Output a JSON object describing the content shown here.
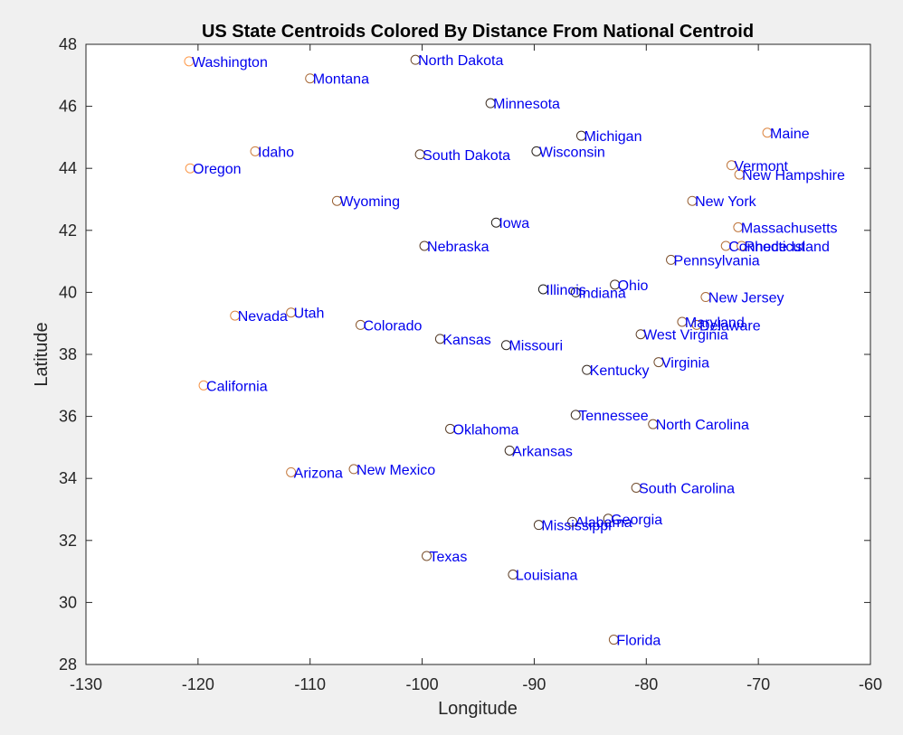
{
  "chart_data": {
    "type": "scatter",
    "title": "US State Centroids Colored By Distance From National Centroid",
    "xlabel": "Longitude",
    "ylabel": "Latitude",
    "xlim": [
      -130,
      -60
    ],
    "ylim": [
      28,
      48
    ],
    "xticks": [
      -130,
      -120,
      -110,
      -100,
      -90,
      -80,
      -70,
      -60
    ],
    "yticks": [
      28,
      30,
      32,
      34,
      36,
      38,
      40,
      42,
      44,
      46,
      48
    ],
    "grid": false,
    "marker": "open-circle",
    "label_color": "#0000ee",
    "color_near": "#1a1a1a",
    "color_far": "#ff9a4a",
    "points": [
      {
        "name": "Washington",
        "x": -120.8,
        "y": 47.45,
        "d": 1.0
      },
      {
        "name": "Montana",
        "x": -110.0,
        "y": 46.9,
        "d": 0.62
      },
      {
        "name": "North Dakota",
        "x": -100.6,
        "y": 47.5,
        "d": 0.35
      },
      {
        "name": "Minnesota",
        "x": -93.9,
        "y": 46.1,
        "d": 0.15
      },
      {
        "name": "Michigan",
        "x": -85.8,
        "y": 45.05,
        "d": 0.18
      },
      {
        "name": "Maine",
        "x": -69.2,
        "y": 45.15,
        "d": 0.85
      },
      {
        "name": "Idaho",
        "x": -114.9,
        "y": 44.55,
        "d": 0.78
      },
      {
        "name": "South Dakota",
        "x": -100.2,
        "y": 44.45,
        "d": 0.3
      },
      {
        "name": "Wisconsin",
        "x": -89.8,
        "y": 44.55,
        "d": 0.06
      },
      {
        "name": "Vermont",
        "x": -72.4,
        "y": 44.1,
        "d": 0.72
      },
      {
        "name": "Oregon",
        "x": -120.7,
        "y": 44.0,
        "d": 0.98
      },
      {
        "name": "New Hampshire",
        "x": -71.7,
        "y": 43.8,
        "d": 0.74
      },
      {
        "name": "Wyoming",
        "x": -107.6,
        "y": 42.95,
        "d": 0.55
      },
      {
        "name": "New York",
        "x": -75.9,
        "y": 42.95,
        "d": 0.55
      },
      {
        "name": "Iowa",
        "x": -93.4,
        "y": 42.25,
        "d": 0.05
      },
      {
        "name": "Massachusetts",
        "x": -71.8,
        "y": 42.1,
        "d": 0.72
      },
      {
        "name": "Nebraska",
        "x": -99.8,
        "y": 41.5,
        "d": 0.28
      },
      {
        "name": "Connecticut",
        "x": -72.9,
        "y": 41.5,
        "d": 0.68
      },
      {
        "name": "Rhode Island",
        "x": -71.5,
        "y": 41.5,
        "d": 0.74
      },
      {
        "name": "Pennsylvania",
        "x": -77.8,
        "y": 41.05,
        "d": 0.45
      },
      {
        "name": "Ohio",
        "x": -82.8,
        "y": 40.25,
        "d": 0.2
      },
      {
        "name": "Illinois",
        "x": -89.2,
        "y": 40.1,
        "d": 0.0
      },
      {
        "name": "Indiana",
        "x": -86.3,
        "y": 40.0,
        "d": 0.08
      },
      {
        "name": "New Jersey",
        "x": -74.7,
        "y": 39.85,
        "d": 0.62
      },
      {
        "name": "Utah",
        "x": -111.7,
        "y": 39.35,
        "d": 0.68
      },
      {
        "name": "Nevada",
        "x": -116.7,
        "y": 39.25,
        "d": 0.85
      },
      {
        "name": "Maryland",
        "x": -76.8,
        "y": 39.05,
        "d": 0.5
      },
      {
        "name": "Delaware",
        "x": -75.5,
        "y": 38.95,
        "d": 0.58
      },
      {
        "name": "Colorado",
        "x": -105.5,
        "y": 38.95,
        "d": 0.5
      },
      {
        "name": "West Virginia",
        "x": -80.5,
        "y": 38.65,
        "d": 0.3
      },
      {
        "name": "Kansas",
        "x": -98.4,
        "y": 38.5,
        "d": 0.25
      },
      {
        "name": "Missouri",
        "x": -92.5,
        "y": 38.3,
        "d": 0.08
      },
      {
        "name": "Virginia",
        "x": -78.9,
        "y": 37.75,
        "d": 0.38
      },
      {
        "name": "Kentucky",
        "x": -85.3,
        "y": 37.5,
        "d": 0.12
      },
      {
        "name": "California",
        "x": -119.5,
        "y": 37.0,
        "d": 0.95
      },
      {
        "name": "Tennessee",
        "x": -86.3,
        "y": 36.05,
        "d": 0.15
      },
      {
        "name": "North Carolina",
        "x": -79.4,
        "y": 35.75,
        "d": 0.42
      },
      {
        "name": "Oklahoma",
        "x": -97.5,
        "y": 35.6,
        "d": 0.28
      },
      {
        "name": "Arkansas",
        "x": -92.2,
        "y": 34.9,
        "d": 0.16
      },
      {
        "name": "New Mexico",
        "x": -106.1,
        "y": 34.3,
        "d": 0.58
      },
      {
        "name": "Arizona",
        "x": -111.7,
        "y": 34.2,
        "d": 0.75
      },
      {
        "name": "South Carolina",
        "x": -80.9,
        "y": 33.7,
        "d": 0.38
      },
      {
        "name": "Georgia",
        "x": -83.4,
        "y": 32.7,
        "d": 0.3
      },
      {
        "name": "Alabama",
        "x": -86.6,
        "y": 32.6,
        "d": 0.25
      },
      {
        "name": "Mississippi",
        "x": -89.6,
        "y": 32.5,
        "d": 0.22
      },
      {
        "name": "Texas",
        "x": -99.6,
        "y": 31.5,
        "d": 0.42
      },
      {
        "name": "Louisiana",
        "x": -91.9,
        "y": 30.9,
        "d": 0.3
      },
      {
        "name": "Florida",
        "x": -82.9,
        "y": 28.8,
        "d": 0.5
      }
    ]
  }
}
